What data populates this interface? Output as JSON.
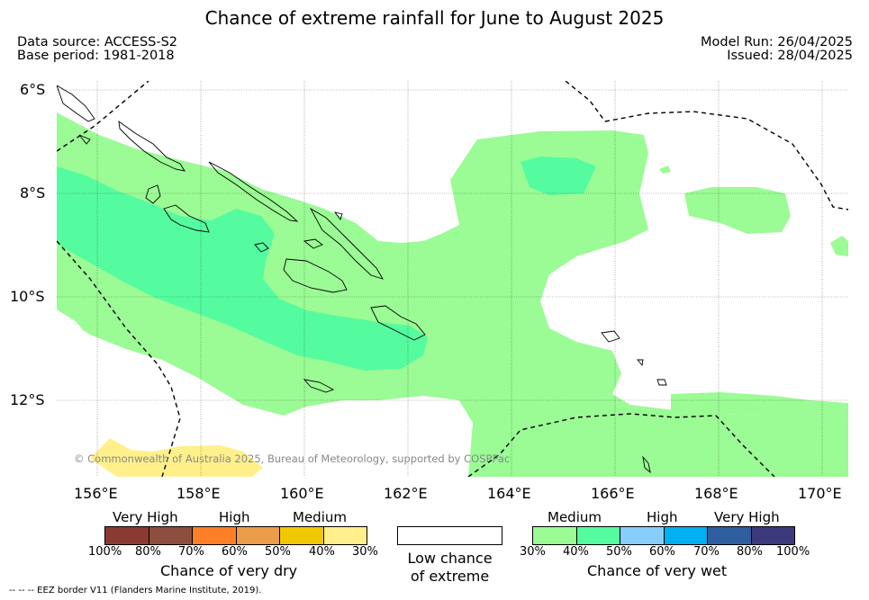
{
  "title": "Chance of extreme rainfall for June to August 2025",
  "header": {
    "data_source": "Data source: ACCESS-S2",
    "base_period": "Base period: 1981-2018",
    "model_run": "Model Run: 26/04/2025",
    "issued": "Issued: 28/04/2025"
  },
  "map": {
    "lat_labels": [
      "6°S",
      "8°S",
      "10°S",
      "12°S"
    ],
    "lon_labels": [
      "156°E",
      "158°E",
      "160°E",
      "162°E",
      "164°E",
      "166°E",
      "168°E",
      "170°E"
    ],
    "extent": {
      "lon_min": 155.4,
      "lon_max": 170.5,
      "lat_max": -5.8,
      "lat_min": -13.5
    },
    "grid": true,
    "credit": "© Commonwealth of Australia 2025, Bureau of Meteorology, supported by COSPPac"
  },
  "legend": {
    "dry": {
      "categories": [
        "Very High",
        "High",
        "Medium"
      ],
      "ticks": [
        "100%",
        "80%",
        "70%",
        "60%",
        "50%",
        "40%",
        "30%"
      ],
      "colors": [
        "#8b3a32",
        "#8c4f3f",
        "#ff7f27",
        "#eb9d4a",
        "#f0c800",
        "#fff08c"
      ],
      "title": "Chance of very dry"
    },
    "neutral": {
      "title_line1": "Low chance",
      "title_line2": "of extreme",
      "color": "#ffffff"
    },
    "wet": {
      "categories": [
        "Medium",
        "High",
        "Very High"
      ],
      "ticks": [
        "30%",
        "40%",
        "50%",
        "60%",
        "70%",
        "80%",
        "100%"
      ],
      "colors": [
        "#9bfb95",
        "#55fb9f",
        "#87cefa",
        "#00b0f0",
        "#2f5ea0",
        "#3c3a7a"
      ],
      "title": "Chance of very wet"
    }
  },
  "footer": "-- -- -- EEZ border V11 (Flanders Marine Institute, 2019)."
}
